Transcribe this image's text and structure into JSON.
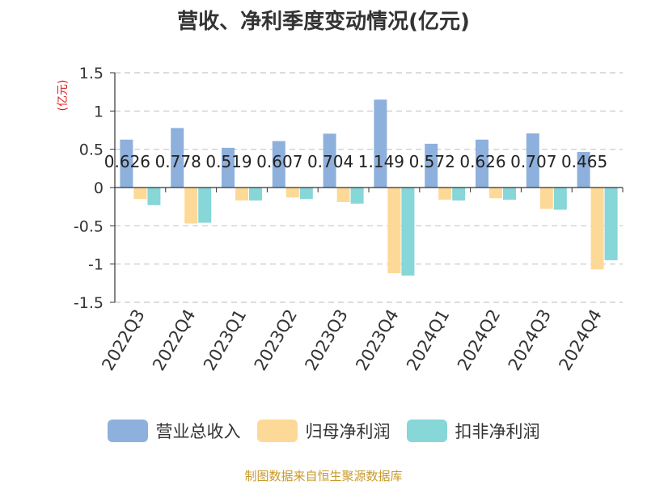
{
  "chart_data": {
    "type": "bar",
    "title": "营收、净利季度变动情况(亿元)",
    "ylabel": "(亿元)",
    "ylim": [
      -1.5,
      1.5
    ],
    "yticks": [
      "1.5",
      "1",
      "0.5",
      "0",
      "-0.5",
      "-1",
      "-1.5"
    ],
    "ytick_values": [
      1.5,
      1,
      0.5,
      0,
      -0.5,
      -1,
      -1.5
    ],
    "categories": [
      "2022Q3",
      "2022Q4",
      "2023Q1",
      "2023Q2",
      "2023Q3",
      "2023Q4",
      "2024Q1",
      "2024Q2",
      "2024Q3",
      "2024Q4"
    ],
    "series": [
      {
        "name": "营业总收入",
        "color": "#8eb0dc",
        "values": [
          0.626,
          0.778,
          0.519,
          0.607,
          0.704,
          1.149,
          0.572,
          0.626,
          0.707,
          0.465
        ],
        "labels": [
          "0.626",
          "0.778",
          "0.519",
          "0.607",
          "0.704",
          "1.149",
          "0.572",
          "0.626",
          "0.707",
          "0.465"
        ]
      },
      {
        "name": "归母净利润",
        "color": "#fdd998",
        "values": [
          -0.15,
          -0.47,
          -0.17,
          -0.13,
          -0.19,
          -1.12,
          -0.16,
          -0.14,
          -0.28,
          -1.07
        ]
      },
      {
        "name": "扣非净利润",
        "color": "#87d6d8",
        "values": [
          -0.23,
          -0.46,
          -0.17,
          -0.15,
          -0.21,
          -1.15,
          -0.17,
          -0.16,
          -0.29,
          -0.95
        ]
      }
    ],
    "grid": true,
    "legend_position": "bottom"
  },
  "source_note": "制图数据来自恒生聚源数据库"
}
